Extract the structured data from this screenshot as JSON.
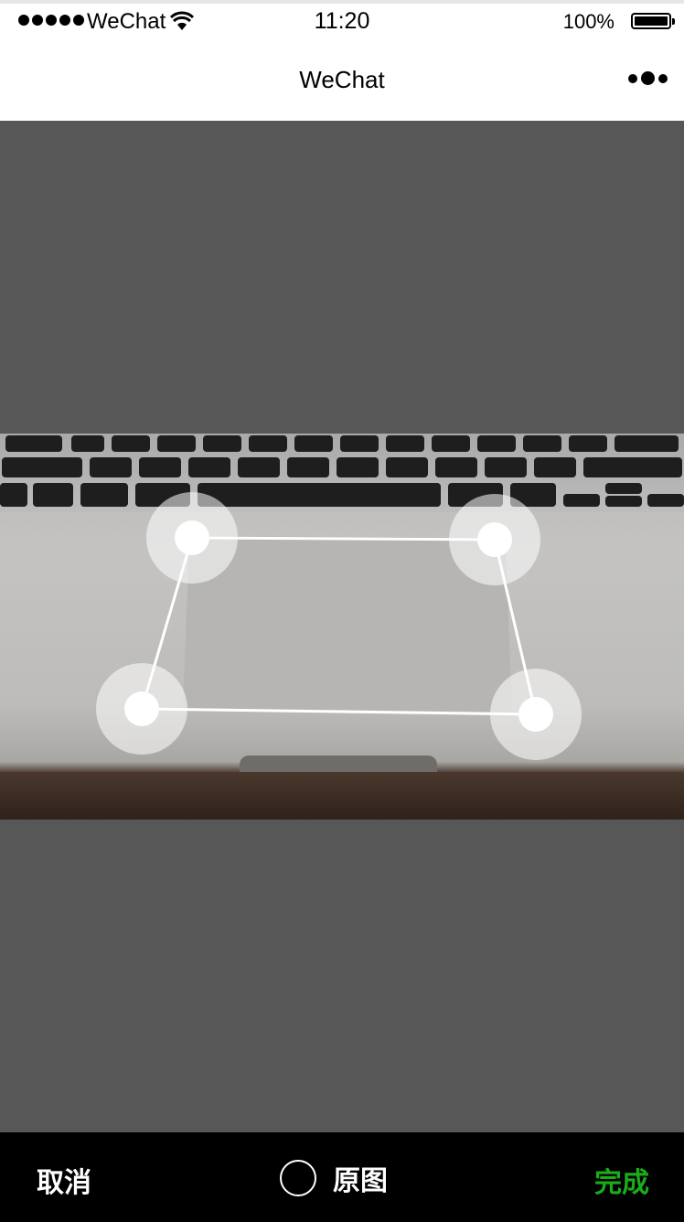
{
  "status_bar": {
    "carrier": "WeChat",
    "time": "11:20",
    "battery_percent": "100%",
    "icons": [
      "signal-dots-icon",
      "wifi-icon",
      "battery-icon"
    ]
  },
  "nav_bar": {
    "title": "WeChat",
    "more_icon": "more-dots-icon"
  },
  "editor": {
    "image_subject": "laptop-trackpad-photo"
  },
  "toolbar": {
    "cancel_label": "取消",
    "original_label": "原图",
    "original_checked": false,
    "done_label": "完成",
    "done_color": "#1aad19"
  },
  "colors": {
    "background": "#575757",
    "toolbar": "#000000",
    "accent": "#1aad19"
  }
}
